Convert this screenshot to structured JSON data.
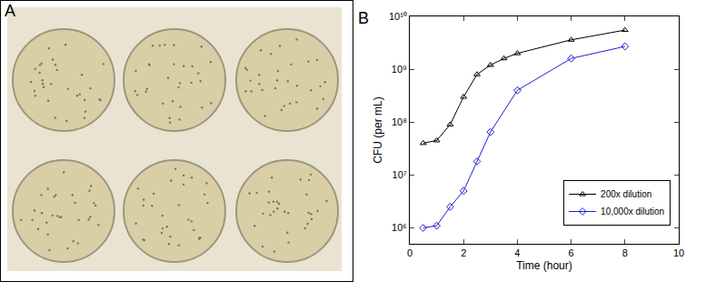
{
  "chart_data": {
    "type": "line",
    "annotations": [
      "A",
      "B"
    ],
    "x_label": "Time (hour)",
    "y_label": "CFU (per mL)",
    "log": "y",
    "legend": "lower right",
    "grid": false,
    "xlim": [
      0,
      10
    ],
    "xticks": [
      0,
      2,
      4,
      6,
      8,
      10
    ],
    "ylim": [
      500000,
      10000000000
    ],
    "yticks": [
      {
        "value": 1000000,
        "label": "10⁶"
      },
      {
        "value": 10000000,
        "label": "10⁷"
      },
      {
        "value": 100000000,
        "label": "10⁸"
      },
      {
        "value": 1000000000,
        "label": "10⁹"
      },
      {
        "value": 10000000000,
        "label": "10¹⁰"
      }
    ],
    "series": [
      {
        "name": "200x dilution",
        "color": "#000000",
        "marker": "triangle-up-open",
        "x": [
          0.5,
          1,
          1.5,
          2,
          2.5,
          3,
          3.5,
          4,
          6,
          8
        ],
        "values": [
          40000000,
          45000000,
          90000000,
          300000000,
          800000000,
          1200000000,
          1600000000,
          2000000000,
          3600000000,
          5500000000
        ]
      },
      {
        "name": "10,000x dilution",
        "color": "#1f1fd0",
        "marker": "diamond-open",
        "x": [
          0.5,
          1,
          1.5,
          2,
          2.5,
          3,
          4,
          6,
          8
        ],
        "values": [
          1000000,
          1100000,
          2500000,
          5000000,
          18000000,
          65000000,
          400000000,
          1600000000,
          2700000000
        ]
      }
    ]
  }
}
